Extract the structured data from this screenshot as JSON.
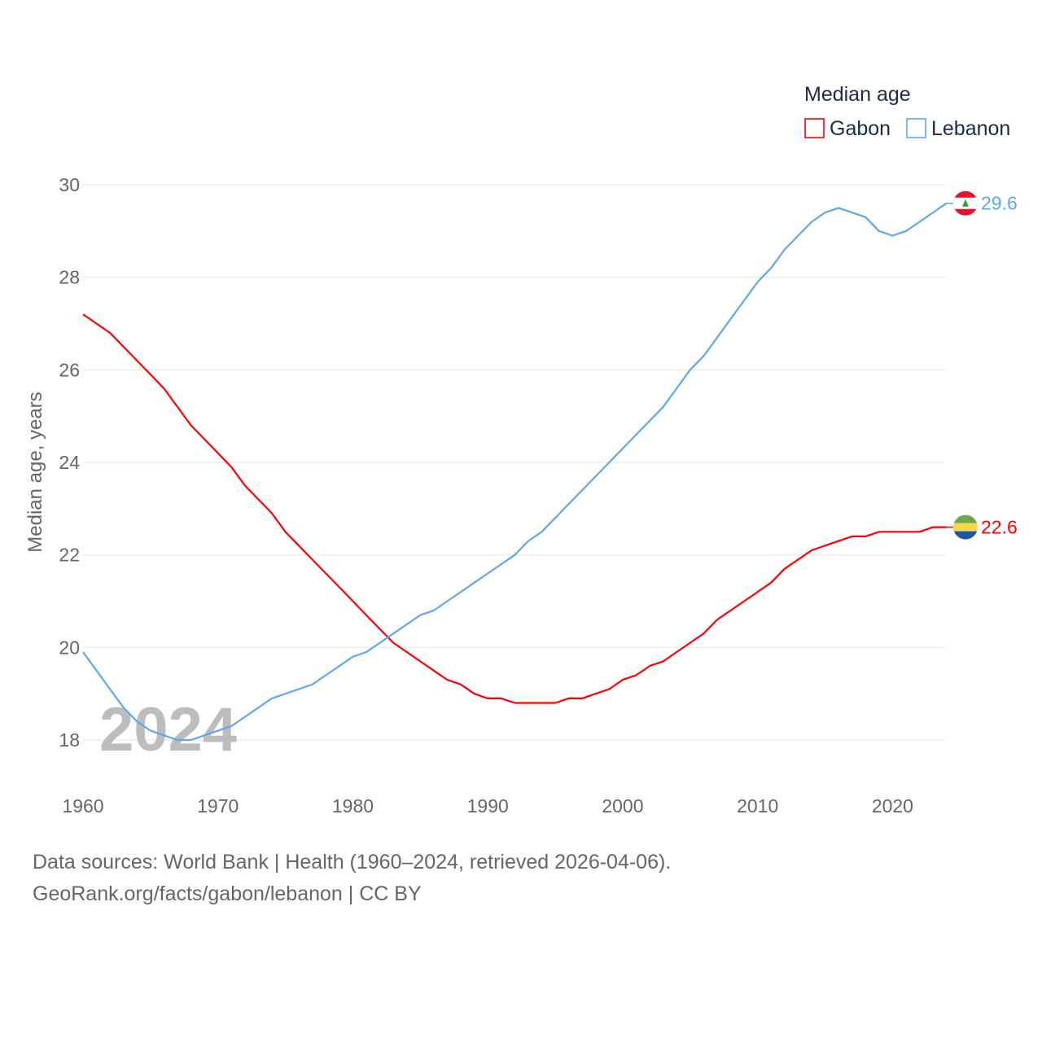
{
  "chart_data": {
    "type": "line",
    "title": "Median age",
    "ylabel": "Median age, years",
    "xlabel": "",
    "xlim": [
      1960,
      2024
    ],
    "ylim": [
      18,
      30
    ],
    "yticks": [
      18,
      20,
      22,
      24,
      26,
      28,
      30
    ],
    "xticks": [
      1960,
      1970,
      1980,
      1990,
      2000,
      2010,
      2020
    ],
    "grid": true,
    "legend_position": "top-right",
    "watermark_year": "2024",
    "x_start": 1960,
    "series": [
      {
        "name": "Gabon",
        "color": "#ff0000",
        "end_label": "22.6",
        "values": [
          27.2,
          27.0,
          26.8,
          26.5,
          26.2,
          25.9,
          25.6,
          25.2,
          24.8,
          24.5,
          24.2,
          23.9,
          23.5,
          23.2,
          22.9,
          22.5,
          22.2,
          21.9,
          21.6,
          21.3,
          21.0,
          20.7,
          20.4,
          20.1,
          19.9,
          19.7,
          19.5,
          19.3,
          19.2,
          19.0,
          18.9,
          18.9,
          18.8,
          18.8,
          18.8,
          18.8,
          18.9,
          18.9,
          19.0,
          19.1,
          19.3,
          19.4,
          19.6,
          19.7,
          19.9,
          20.1,
          20.3,
          20.6,
          20.8,
          21.0,
          21.2,
          21.4,
          21.7,
          21.9,
          22.1,
          22.2,
          22.3,
          22.4,
          22.4,
          22.5,
          22.5,
          22.5,
          22.5,
          22.6,
          22.6
        ]
      },
      {
        "name": "Lebanon",
        "color": "#5ea8ee",
        "end_label": "29.6",
        "values": [
          19.9,
          19.5,
          19.1,
          18.7,
          18.4,
          18.2,
          18.1,
          18.0,
          18.0,
          18.1,
          18.2,
          18.3,
          18.5,
          18.7,
          18.9,
          19.0,
          19.1,
          19.2,
          19.4,
          19.6,
          19.8,
          19.9,
          20.1,
          20.3,
          20.5,
          20.7,
          20.8,
          21.0,
          21.2,
          21.4,
          21.6,
          21.8,
          22.0,
          22.3,
          22.5,
          22.8,
          23.1,
          23.4,
          23.7,
          24.0,
          24.3,
          24.6,
          24.9,
          25.2,
          25.6,
          26.0,
          26.3,
          26.7,
          27.1,
          27.5,
          27.9,
          28.2,
          28.6,
          28.9,
          29.2,
          29.4,
          29.5,
          29.4,
          29.3,
          29.0,
          28.9,
          29.0,
          29.2,
          29.4,
          29.6
        ]
      }
    ]
  },
  "footer": {
    "line1": "Data sources: World Bank | Health (1960–2024, retrieved 2026-04-06).",
    "line2": "GeoRank.org/facts/gabon/lebanon | CC BY"
  }
}
